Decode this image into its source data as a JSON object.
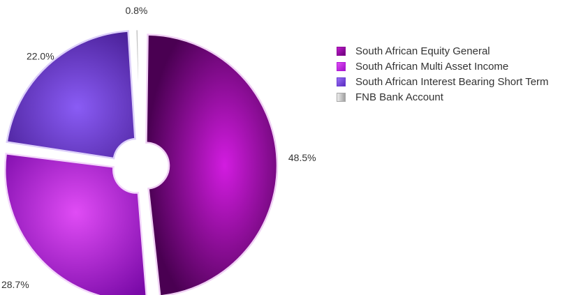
{
  "chart_data": {
    "type": "pie",
    "title": "",
    "donut": true,
    "exploded": true,
    "legend_position": "right",
    "slices": [
      {
        "name": "South African Equity General",
        "value": 48.5,
        "label": "48.5%",
        "color": "#9c0d9e"
      },
      {
        "name": "South African Multi Asset Income",
        "value": 28.7,
        "label": "28.7%",
        "color": "#c21de0"
      },
      {
        "name": "South African Interest Bearing Short Term",
        "value": 22.0,
        "label": "22.0%",
        "color": "#6a3cd0"
      },
      {
        "name": "FNB Bank Account",
        "value": 0.8,
        "label": "0.8%",
        "color": "#bdbdbd"
      }
    ]
  }
}
